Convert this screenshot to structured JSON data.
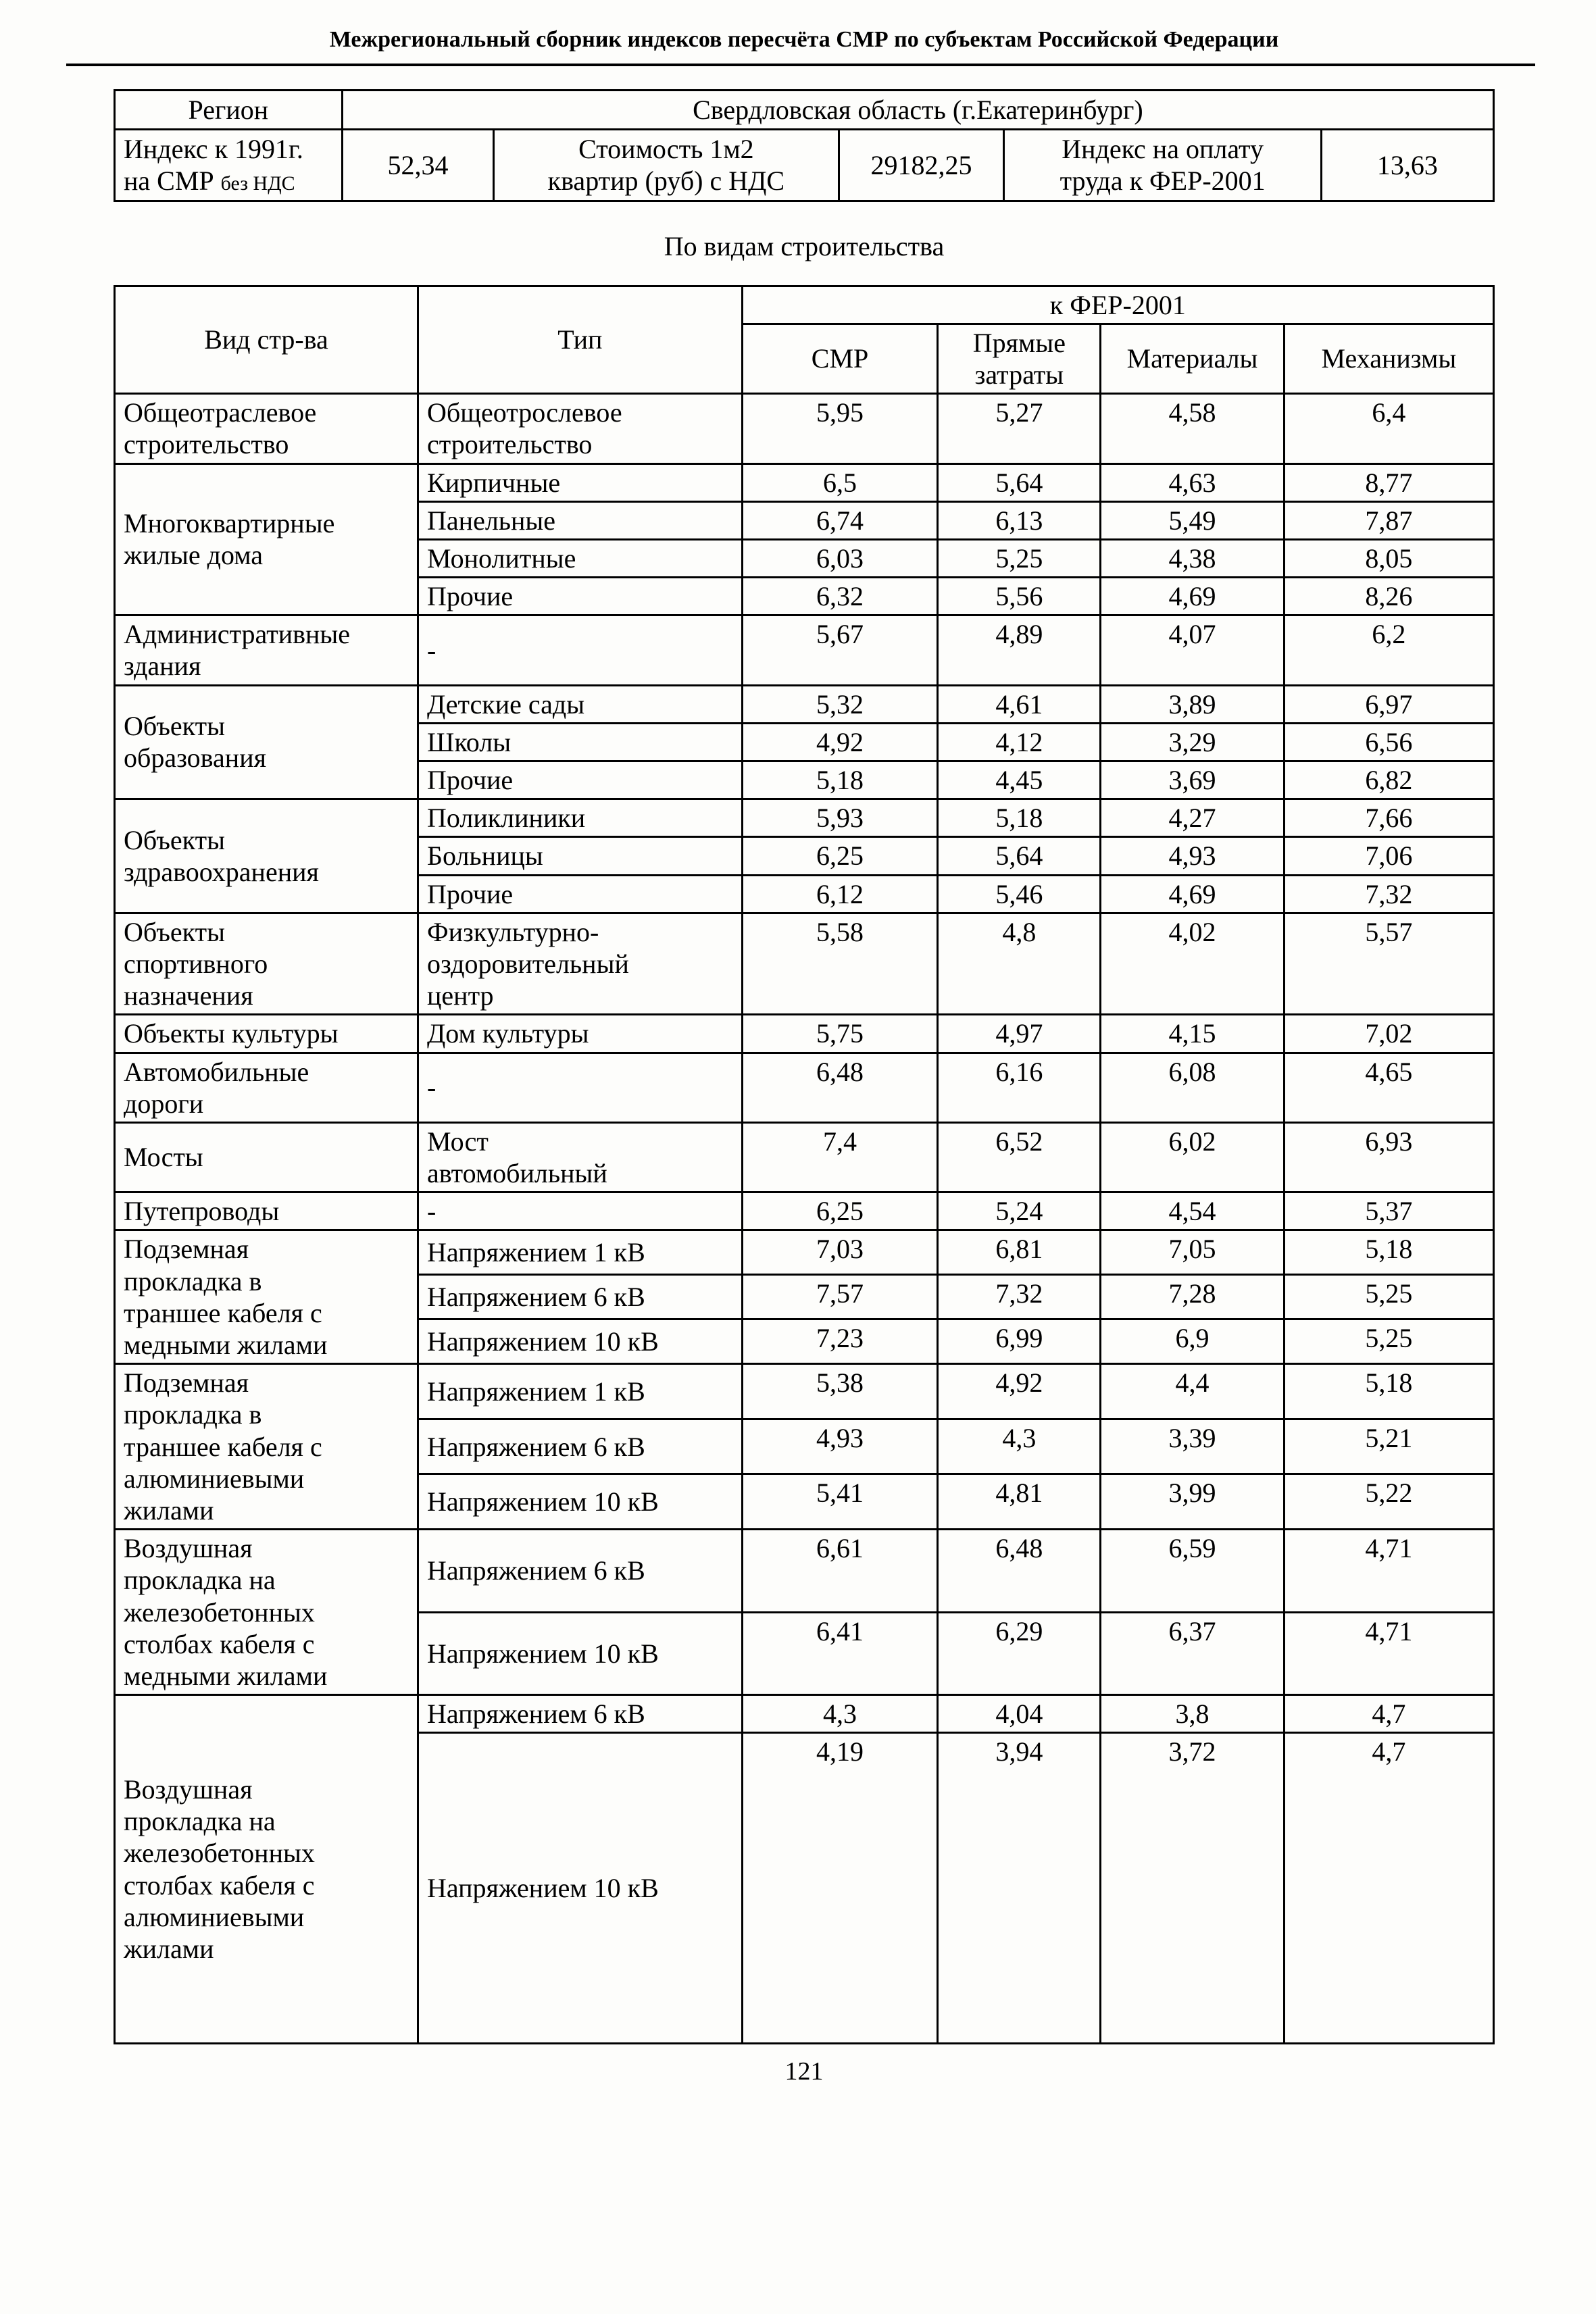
{
  "page": {
    "header_title": "Межрегиональный сборник индексов пересчёта СМР  по субъектам Российской Федерации",
    "section_title": "По видам строительства",
    "page_number": "121"
  },
  "summary": {
    "region_label": "Регион",
    "region_value": "Свердловская область (г.Екатеринбург)",
    "smr_index_label_line1": "Индекс к 1991г.",
    "smr_index_label_line2": "на СМР",
    "smr_index_label_small": "без НДС",
    "smr_index_value": "52,34",
    "cost_label": "Стоимость 1м2\nквартир (руб) с НДС",
    "cost_value": "29182,25",
    "labor_index_label": "Индекс на оплату\nтруда к ФЕР-2001",
    "labor_index_value": "13,63"
  },
  "table": {
    "headers": {
      "construction_kind": "Вид стр-ва",
      "type": "Тип",
      "fer_group": "к ФЕР-2001",
      "smr": "СМР",
      "direct_costs": "Прямые\nзатраты",
      "materials": "Материалы",
      "mechanisms": "Механизмы"
    },
    "groups": [
      {
        "name": "Общеотраслевое\nстроительство",
        "rows": [
          {
            "tip": "Общеотрослевое\nстроительство",
            "smr": "5,95",
            "direct": "5,27",
            "materials": "4,58",
            "mechanisms": "6,4"
          }
        ]
      },
      {
        "name": "Многоквартирные\nжилые дома",
        "rows": [
          {
            "tip": "Кирпичные",
            "smr": "6,5",
            "direct": "5,64",
            "materials": "4,63",
            "mechanisms": "8,77"
          },
          {
            "tip": "Панельные",
            "smr": "6,74",
            "direct": "6,13",
            "materials": "5,49",
            "mechanisms": "7,87"
          },
          {
            "tip": "Монолитные",
            "smr": "6,03",
            "direct": "5,25",
            "materials": "4,38",
            "mechanisms": "8,05"
          },
          {
            "tip": "Прочие",
            "smr": "6,32",
            "direct": "5,56",
            "materials": "4,69",
            "mechanisms": "8,26"
          }
        ]
      },
      {
        "name": "Административные\nздания",
        "rows": [
          {
            "tip": "-",
            "smr": "5,67",
            "direct": "4,89",
            "materials": "4,07",
            "mechanisms": "6,2"
          }
        ]
      },
      {
        "name": "Объекты\nобразования",
        "rows": [
          {
            "tip": "Детские сады",
            "smr": "5,32",
            "direct": "4,61",
            "materials": "3,89",
            "mechanisms": "6,97"
          },
          {
            "tip": "Школы",
            "smr": "4,92",
            "direct": "4,12",
            "materials": "3,29",
            "mechanisms": "6,56"
          },
          {
            "tip": "Прочие",
            "smr": "5,18",
            "direct": "4,45",
            "materials": "3,69",
            "mechanisms": "6,82"
          }
        ]
      },
      {
        "name": "Объекты\nздравоохранения",
        "rows": [
          {
            "tip": "Поликлиники",
            "smr": "5,93",
            "direct": "5,18",
            "materials": "4,27",
            "mechanisms": "7,66"
          },
          {
            "tip": "Больницы",
            "smr": "6,25",
            "direct": "5,64",
            "materials": "4,93",
            "mechanisms": "7,06"
          },
          {
            "tip": "Прочие",
            "smr": "6,12",
            "direct": "5,46",
            "materials": "4,69",
            "mechanisms": "7,32"
          }
        ]
      },
      {
        "name": "Объекты\nспортивного\nназначения",
        "rows": [
          {
            "tip": "Физкультурно-\nоздоровительный\nцентр",
            "smr": "5,58",
            "direct": "4,8",
            "materials": "4,02",
            "mechanisms": "5,57"
          }
        ]
      },
      {
        "name": "Объекты культуры",
        "rows": [
          {
            "tip": "Дом культуры",
            "smr": "5,75",
            "direct": "4,97",
            "materials": "4,15",
            "mechanisms": "7,02"
          }
        ]
      },
      {
        "name": "Автомобильные\nдороги",
        "rows": [
          {
            "tip": "-",
            "smr": "6,48",
            "direct": "6,16",
            "materials": "6,08",
            "mechanisms": "4,65"
          }
        ]
      },
      {
        "name": "Мосты",
        "rows": [
          {
            "tip": "Мост\nавтомобильный",
            "smr": "7,4",
            "direct": "6,52",
            "materials": "6,02",
            "mechanisms": "6,93"
          }
        ]
      },
      {
        "name": "Путепроводы",
        "rows": [
          {
            "tip": "-",
            "smr": "6,25",
            "direct": "5,24",
            "materials": "4,54",
            "mechanisms": "5,37"
          }
        ]
      },
      {
        "name": "Подземная\nпрокладка в\nтраншее кабеля с\nмедными жилами",
        "rows": [
          {
            "tip": "Напряжением 1 кВ",
            "smr": "7,03",
            "direct": "6,81",
            "materials": "7,05",
            "mechanisms": "5,18"
          },
          {
            "tip": "Напряжением 6 кВ",
            "smr": "7,57",
            "direct": "7,32",
            "materials": "7,28",
            "mechanisms": "5,25"
          },
          {
            "tip": "Напряжением 10 кВ",
            "smr": "7,23",
            "direct": "6,99",
            "materials": "6,9",
            "mechanisms": "5,25"
          }
        ]
      },
      {
        "name": "Подземная\nпрокладка в\nтраншее кабеля  с\nалюминиевыми\nжилами",
        "rows": [
          {
            "tip": "Напряжением 1 кВ",
            "smr": "5,38",
            "direct": "4,92",
            "materials": "4,4",
            "mechanisms": "5,18"
          },
          {
            "tip": "Напряжением 6 кВ",
            "smr": "4,93",
            "direct": "4,3",
            "materials": "3,39",
            "mechanisms": "5,21"
          },
          {
            "tip": "Напряжением 10 кВ",
            "smr": "5,41",
            "direct": "4,81",
            "materials": "3,99",
            "mechanisms": "5,22"
          }
        ]
      },
      {
        "name": "Воздушная\nпрокладка на\nжелезобетонных\nстолбах кабеля с\nмедными жилами",
        "rows": [
          {
            "tip": "Напряжением 6 кВ",
            "smr": "6,61",
            "direct": "6,48",
            "materials": "6,59",
            "mechanisms": "4,71"
          },
          {
            "tip": "Напряжением 10 кВ",
            "smr": "6,41",
            "direct": "6,29",
            "materials": "6,37",
            "mechanisms": "4,71"
          }
        ]
      },
      {
        "name": "Воздушная\nпрокладка на\nжелезобетонных\nстолбах кабеля с\nалюминиевыми\nжилами",
        "rows": [
          {
            "tip": "Напряжением 6 кВ",
            "smr": "4,3",
            "direct": "4,04",
            "materials": "3,8",
            "mechanisms": "4,7"
          },
          {
            "tip": "Напряжением 10 кВ",
            "smr": "4,19",
            "direct": "3,94",
            "materials": "3,72",
            "mechanisms": "4,7"
          }
        ]
      }
    ]
  }
}
